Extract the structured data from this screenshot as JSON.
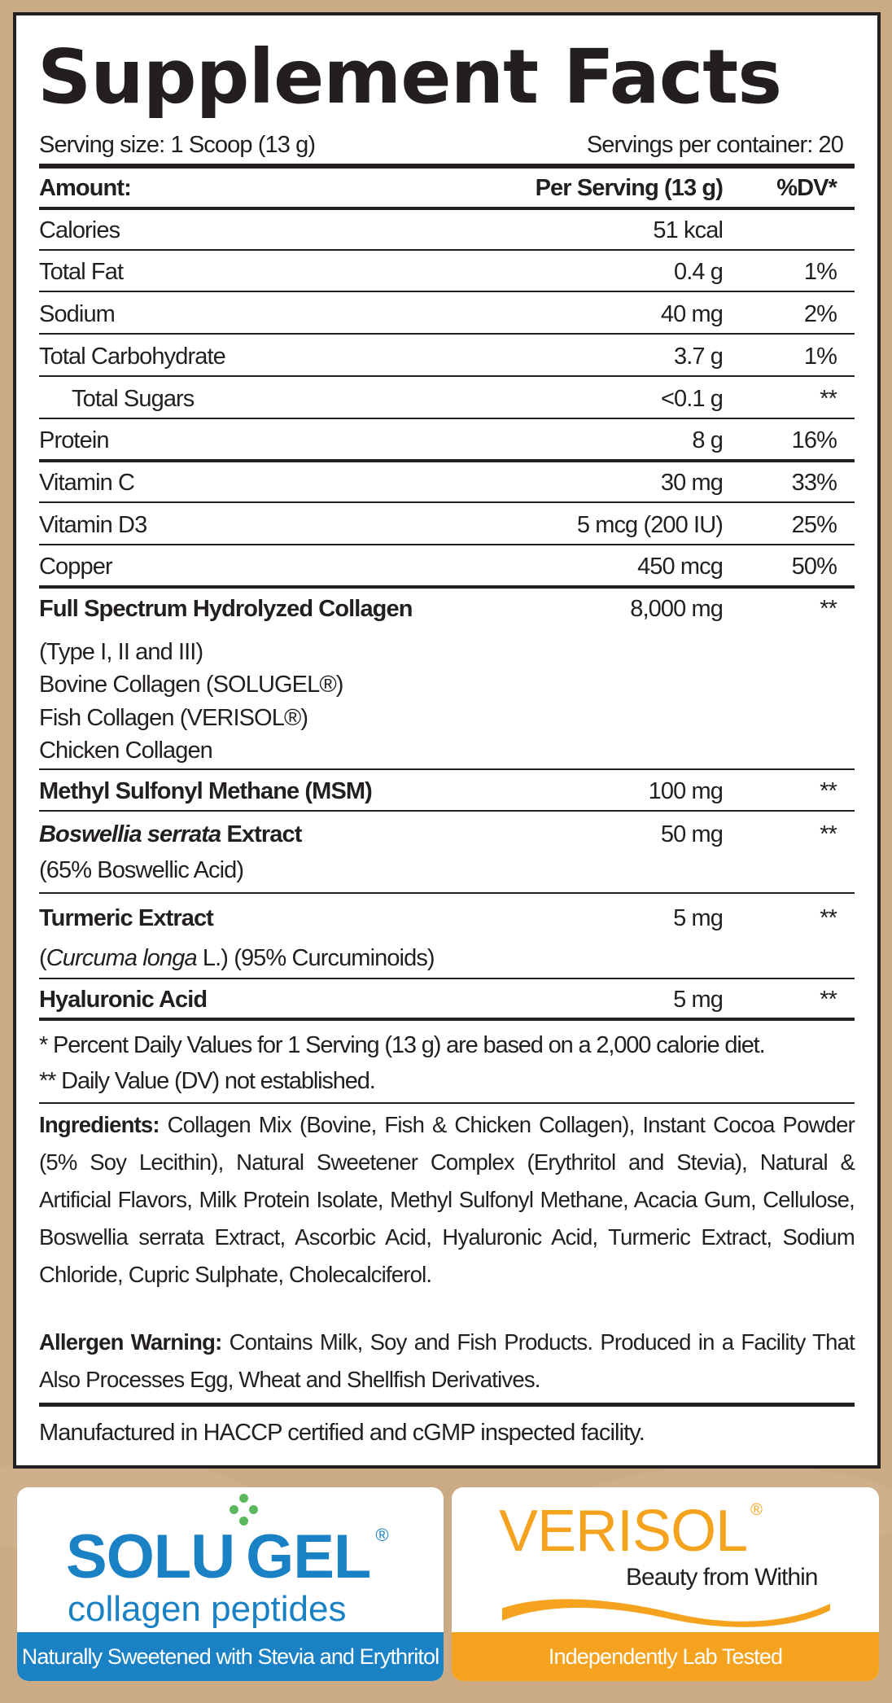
{
  "title": "Supplement Facts",
  "serving_size": "Serving size: 1 Scoop (13 g)",
  "servings_per_container": "Servings per container: 20",
  "header": {
    "amount": "Amount:",
    "per_serving": "Per Serving (13 g)",
    "dv": "%DV*"
  },
  "rows": [
    {
      "label": "Calories",
      "amount": "51 kcal",
      "dv": ""
    },
    {
      "label": "Total Fat",
      "amount": "0.4 g",
      "dv": "1%"
    },
    {
      "label": "Sodium",
      "amount": "40 mg",
      "dv": "2%"
    },
    {
      "label": "Total Carbohydrate",
      "amount": "3.7 g",
      "dv": "1%"
    },
    {
      "label": "Total Sugars",
      "amount": "<0.1 g",
      "dv": "**",
      "indent": true
    },
    {
      "label": "Protein",
      "amount": "8 g",
      "dv": "16%"
    },
    {
      "label": "Vitamin C",
      "amount": "30 mg",
      "dv": "33%"
    },
    {
      "label": "Vitamin D3",
      "amount": "5 mcg (200 IU)",
      "dv": "25%"
    },
    {
      "label": "Copper",
      "amount": "450 mcg",
      "dv": "50%"
    },
    {
      "label": "Full Spectrum Hydrolyzed Collagen",
      "amount": "8,000 mg",
      "dv": "**",
      "bold": true,
      "sub": [
        "(Type I, II and III)",
        "Bovine Collagen (SOLUGEL®)",
        "Fish Collagen (VERISOL®)",
        "Chicken Collagen"
      ]
    },
    {
      "label": "Methyl Sulfonyl Methane (MSM)",
      "amount": "100 mg",
      "dv": "**",
      "bold": true
    },
    {
      "label_italic": "Boswellia serrata",
      "label": " Extract",
      "amount": "50 mg",
      "dv": "**",
      "bold": true,
      "sub": [
        "(65% Boswellic Acid)"
      ]
    },
    {
      "label": "Turmeric Extract",
      "amount": "5 mg",
      "dv": "**",
      "bold": true,
      "sub_rich": {
        "pre": "(",
        "italic": "Curcuma longa",
        "post": " L.) (95% Curcuminoids)"
      }
    },
    {
      "label": "Hyaluronic Acid",
      "amount": "5 mg",
      "dv": "**",
      "bold": true
    }
  ],
  "footnotes": [
    "* Percent Daily Values for 1 Serving (13 g) are based on a 2,000 calorie diet.",
    "** Daily Value (DV) not established."
  ],
  "ingredients": {
    "label": "Ingredients:",
    "text": " Collagen Mix (Bovine, Fish & Chicken Collagen), Instant Cocoa Powder (5% Soy Lecithin), Natural Sweetener Complex (Erythritol and Stevia), Natural & Artificial Flavors, Milk Protein Isolate, Methyl Sulfonyl Methane, Acacia Gum, Cellulose, Boswellia serrata Extract, Ascorbic Acid, Hyaluronic Acid, Turmeric Extract, Sodium Chloride, Cupric Sulphate, Cholecalciferol."
  },
  "allergen": {
    "label": "Allergen Warning:",
    "text": " Contains Milk, Soy and Fish Products. Produced in a Facility That Also Processes Egg, Wheat and Shellfish Derivatives."
  },
  "manufactured": "Manufactured in HACCP certified and cGMP inspected facility.",
  "badges": {
    "solugel": {
      "logo": "SOLUGEL",
      "logo_left": "SOLU",
      "logo_right": "GEL",
      "reg": "®",
      "tagline": "collagen peptides",
      "band": "Naturally Sweetened with Stevia and Erythritol"
    },
    "verisol": {
      "logo": "VERISOL",
      "reg": "®",
      "tagline": "Beauty from Within",
      "band": "Independently Lab Tested"
    }
  },
  "colors": {
    "background": "#cbab86",
    "ink": "#231f20",
    "solugel_blue": "#1a82c4",
    "solugel_green": "#5cb85c",
    "verisol_orange": "#f5a31e"
  }
}
